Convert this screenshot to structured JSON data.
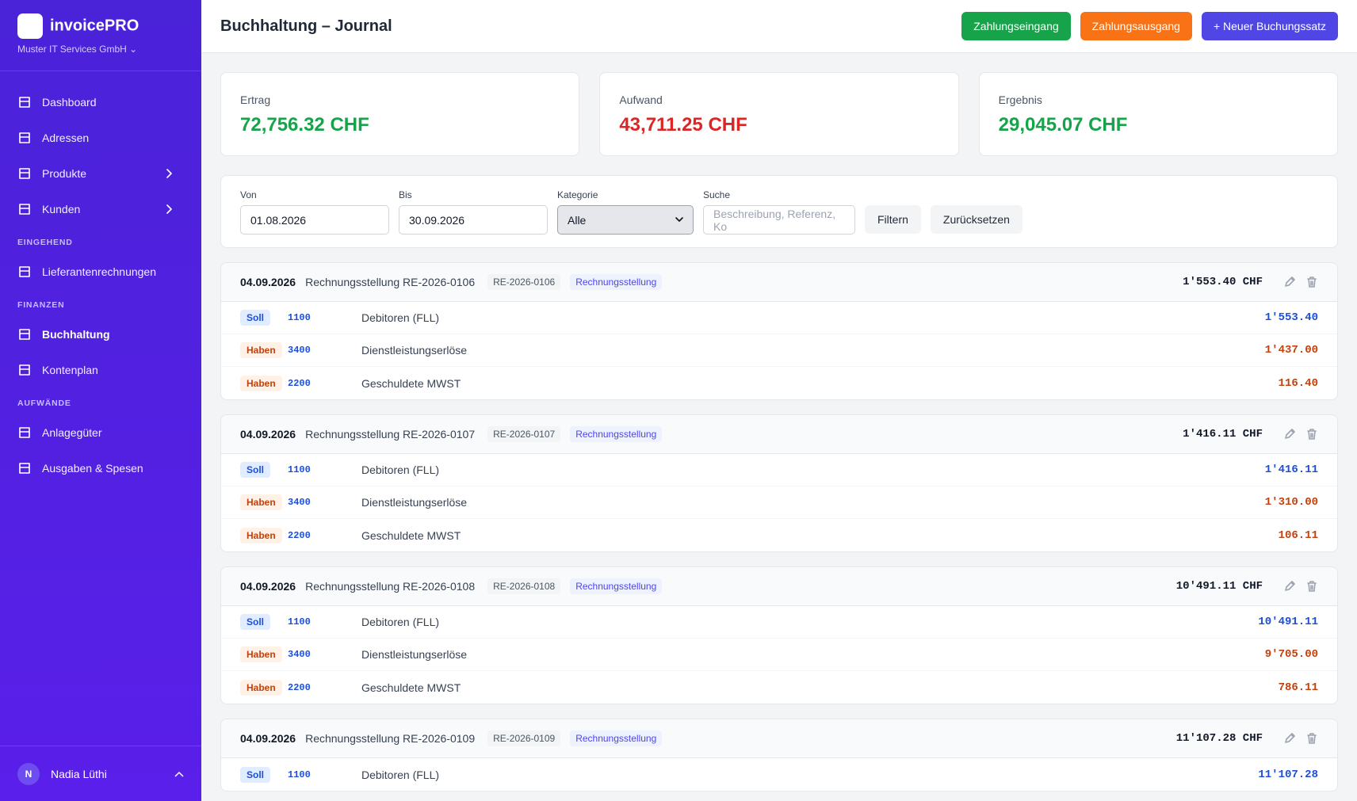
{
  "sidebar": {
    "brand": "invoicePRO",
    "company": "Muster IT Services GmbH",
    "nav": [
      {
        "label": "Dashboard"
      },
      {
        "label": "Adressen"
      },
      {
        "label": "Produkte",
        "expandable": true
      },
      {
        "label": "Kunden",
        "expandable": true
      },
      {
        "section": "EINGEHEND"
      },
      {
        "label": "Lieferantenrechnungen"
      },
      {
        "section": "FINANZEN"
      },
      {
        "label": "Buchhaltung",
        "active": true
      },
      {
        "label": "Kontenplan"
      },
      {
        "section": "AUFWÄNDE"
      },
      {
        "label": "Anlagegüter"
      },
      {
        "label": "Ausgaben & Spesen"
      }
    ],
    "user": {
      "initial": "N",
      "name": "Nadia Lüthi"
    }
  },
  "header": {
    "title": "Buchhaltung – Journal",
    "buttons": [
      {
        "label": "Zahlungseingang",
        "color": "#16a34a"
      },
      {
        "label": "Zahlungsausgang",
        "color": "#f97316"
      },
      {
        "label": "+ Neuer Buchungssatz",
        "color": "#4f46e5"
      }
    ]
  },
  "summary": [
    {
      "label": "Ertrag",
      "value": "72,756.32 CHF",
      "color": "#16a34a"
    },
    {
      "label": "Aufwand",
      "value": "43,711.25 CHF",
      "color": "#dc2626"
    },
    {
      "label": "Ergebnis",
      "value": "29,045.07 CHF",
      "color": "#16a34a"
    }
  ],
  "filter": {
    "fields": [
      {
        "label": "Von",
        "value": "01.08.2026"
      },
      {
        "label": "Bis",
        "value": "30.09.2026"
      },
      {
        "label": "Kategorie",
        "value": "Alle",
        "select": true
      },
      {
        "label": "Suche",
        "placeholder": "Beschreibung, Referenz, Ko"
      }
    ],
    "buttons": [
      "Filtern",
      "Zurücksetzen"
    ]
  },
  "entries": [
    {
      "date": "04.09.2026",
      "description": "Rechnungsstellung RE-2026-0106",
      "reference": "RE-2026-0106",
      "category": "Rechnungsstellung",
      "total": "1'553.40 CHF",
      "lines": [
        {
          "side": "Soll",
          "account": "1100",
          "name": "Debitoren (FLL)",
          "amount": "1'553.40"
        },
        {
          "side": "Haben",
          "account": "3400",
          "name": "Dienstleistungserlöse",
          "amount": "1'437.00"
        },
        {
          "side": "Haben",
          "account": "2200",
          "name": "Geschuldete MWST",
          "amount": "116.40"
        }
      ]
    },
    {
      "date": "04.09.2026",
      "description": "Rechnungsstellung RE-2026-0107",
      "reference": "RE-2026-0107",
      "category": "Rechnungsstellung",
      "total": "1'416.11 CHF",
      "lines": [
        {
          "side": "Soll",
          "account": "1100",
          "name": "Debitoren (FLL)",
          "amount": "1'416.11"
        },
        {
          "side": "Haben",
          "account": "3400",
          "name": "Dienstleistungserlöse",
          "amount": "1'310.00"
        },
        {
          "side": "Haben",
          "account": "2200",
          "name": "Geschuldete MWST",
          "amount": "106.11"
        }
      ]
    },
    {
      "date": "04.09.2026",
      "description": "Rechnungsstellung RE-2026-0108",
      "reference": "RE-2026-0108",
      "category": "Rechnungsstellung",
      "total": "10'491.11 CHF",
      "lines": [
        {
          "side": "Soll",
          "account": "1100",
          "name": "Debitoren (FLL)",
          "amount": "10'491.11"
        },
        {
          "side": "Haben",
          "account": "3400",
          "name": "Dienstleistungserlöse",
          "amount": "9'705.00"
        },
        {
          "side": "Haben",
          "account": "2200",
          "name": "Geschuldete MWST",
          "amount": "786.11"
        }
      ]
    },
    {
      "date": "04.09.2026",
      "description": "Rechnungsstellung RE-2026-0109",
      "reference": "RE-2026-0109",
      "category": "Rechnungsstellung",
      "total": "11'107.28 CHF",
      "lines": [
        {
          "side": "Soll",
          "account": "1100",
          "name": "Debitoren (FLL)",
          "amount": "11'107.28"
        }
      ]
    }
  ]
}
